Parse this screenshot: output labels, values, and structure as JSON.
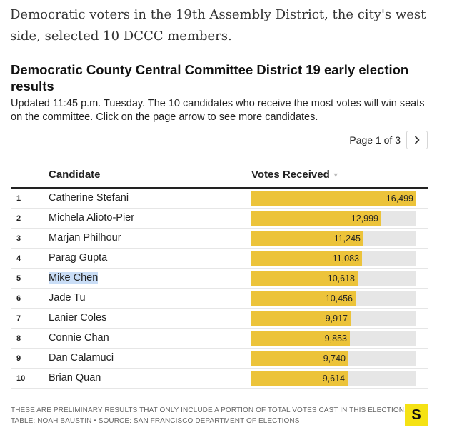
{
  "intro": "Democratic voters in the 19th Assembly District, the city's west side, selected 10 DCCC members.",
  "title": "Democratic County Central Committee District 19 early election results",
  "subtitle": "Updated 11:45 p.m. Tuesday. The 10 candidates who receive the most votes will win seats on the committee. Click on the page arrow to see more candidates.",
  "pager": {
    "label": "Page 1 of 3",
    "next_icon": "chevron-right-icon"
  },
  "table": {
    "headers": {
      "candidate": "Candidate",
      "votes": "Votes Received"
    },
    "max_votes": 16499,
    "rows": [
      {
        "rank": "1",
        "name": "Catherine Stefani",
        "votes": 16499,
        "votes_label": "16,499"
      },
      {
        "rank": "2",
        "name": "Michela Alioto-Pier",
        "votes": 12999,
        "votes_label": "12,999"
      },
      {
        "rank": "3",
        "name": "Marjan Philhour",
        "votes": 11245,
        "votes_label": "11,245"
      },
      {
        "rank": "4",
        "name": "Parag Gupta",
        "votes": 11083,
        "votes_label": "11,083"
      },
      {
        "rank": "5",
        "name": "Mike Chen",
        "votes": 10618,
        "votes_label": "10,618",
        "selected": true
      },
      {
        "rank": "6",
        "name": "Jade Tu",
        "votes": 10456,
        "votes_label": "10,456"
      },
      {
        "rank": "7",
        "name": "Lanier Coles",
        "votes": 9917,
        "votes_label": "9,917"
      },
      {
        "rank": "8",
        "name": "Connie Chan",
        "votes": 9853,
        "votes_label": "9,853"
      },
      {
        "rank": "9",
        "name": "Dan Calamuci",
        "votes": 9740,
        "votes_label": "9,740"
      },
      {
        "rank": "10",
        "name": "Brian Quan",
        "votes": 9614,
        "votes_label": "9,614"
      }
    ]
  },
  "footer": {
    "note": "These are preliminary results that only include a portion of total votes cast in this election.",
    "credit": "Table: Noah Baustin • Source: ",
    "source_link": "San Francisco Department of Elections"
  },
  "logo": {
    "letter": "S"
  },
  "colors": {
    "bar": "#ecc33a",
    "track": "#e6e6e6",
    "logo": "#f5e214",
    "highlight": "#c9ddf6"
  }
}
